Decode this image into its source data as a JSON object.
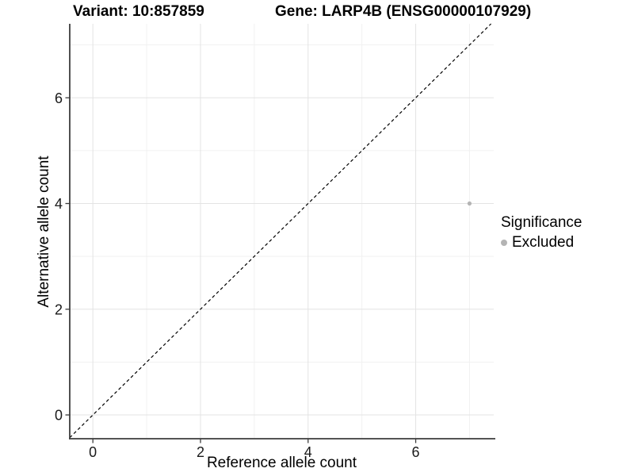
{
  "chart_data": {
    "type": "scatter",
    "title_left": "Variant: 10:857859",
    "title_right": "Gene: LARP4B (ENSG00000107929)",
    "xlabel": "Reference allele count",
    "ylabel": "Alternative allele count",
    "x_ticks": [
      0,
      2,
      4,
      6
    ],
    "y_ticks": [
      0,
      2,
      4,
      6
    ],
    "x_minor_gridlines": [
      1,
      3,
      5,
      7
    ],
    "y_minor_gridlines": [
      1,
      3,
      5,
      7
    ],
    "xlim": [
      -0.43,
      7.45
    ],
    "ylim": [
      -0.45,
      7.4
    ],
    "grid": "major+minor",
    "points": [
      {
        "x": 7,
        "y": 4,
        "significance": "Excluded"
      }
    ],
    "identity_line": {
      "slope": 1,
      "intercept": 0,
      "style": "dashed"
    },
    "legend": {
      "title": "Significance",
      "position": "right",
      "items": [
        {
          "label": "Excluded",
          "marker": "circle",
          "color": "#b4b4b4"
        }
      ]
    },
    "colors": {
      "background": "#ffffff",
      "point": "#b4b4b4",
      "grid_major": "#e3e3e3",
      "grid_minor": "#f1f1f1",
      "axis_line": "#3c3c3c",
      "tick_text": "#1a1a1a",
      "identity_line": "#000000"
    }
  }
}
